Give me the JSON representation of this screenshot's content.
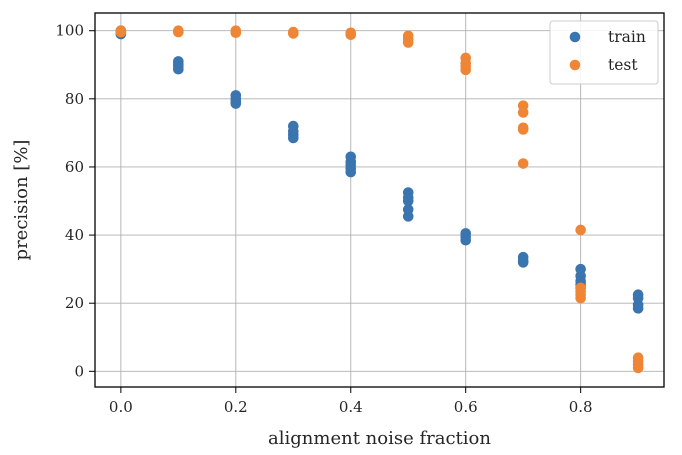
{
  "chart_data": {
    "type": "scatter",
    "xlabel": "alignment noise fraction",
    "ylabel": "precision [%]",
    "xlim": [
      -0.045,
      0.945
    ],
    "ylim": [
      -4.6,
      105.2
    ],
    "x_ticks": [
      0.0,
      0.2,
      0.4,
      0.6,
      0.8
    ],
    "x_tick_labels": [
      "0.0",
      "0.2",
      "0.4",
      "0.6",
      "0.8"
    ],
    "y_ticks": [
      0,
      20,
      40,
      60,
      80,
      100
    ],
    "y_tick_labels": [
      "0",
      "20",
      "40",
      "60",
      "80",
      "100"
    ],
    "grid": true,
    "legend_placement": "top-right",
    "series": [
      {
        "name": "train",
        "color": "#3b75af",
        "points": [
          [
            0.0,
            100
          ],
          [
            0.0,
            99.5
          ],
          [
            0.0,
            99
          ],
          [
            0.1,
            91
          ],
          [
            0.1,
            90.2
          ],
          [
            0.1,
            89.5
          ],
          [
            0.1,
            88.7
          ],
          [
            0.2,
            81
          ],
          [
            0.2,
            80
          ],
          [
            0.2,
            79.2
          ],
          [
            0.2,
            78.6
          ],
          [
            0.3,
            72
          ],
          [
            0.3,
            70.5
          ],
          [
            0.3,
            69.5
          ],
          [
            0.3,
            68.5
          ],
          [
            0.4,
            63
          ],
          [
            0.4,
            61.5
          ],
          [
            0.4,
            60.5
          ],
          [
            0.4,
            59.5
          ],
          [
            0.4,
            58.5
          ],
          [
            0.5,
            52.5
          ],
          [
            0.5,
            51
          ],
          [
            0.5,
            50
          ],
          [
            0.5,
            47.5
          ],
          [
            0.5,
            45.5
          ],
          [
            0.6,
            40.5
          ],
          [
            0.6,
            39.5
          ],
          [
            0.6,
            38.5
          ],
          [
            0.7,
            33.5
          ],
          [
            0.7,
            32.5
          ],
          [
            0.7,
            32
          ],
          [
            0.8,
            30
          ],
          [
            0.8,
            28
          ],
          [
            0.8,
            26.5
          ],
          [
            0.8,
            25.5
          ],
          [
            0.8,
            24.5
          ],
          [
            0.9,
            22.5
          ],
          [
            0.9,
            21.5
          ],
          [
            0.9,
            19.5
          ],
          [
            0.9,
            18.5
          ]
        ]
      },
      {
        "name": "test",
        "color": "#ef8636",
        "points": [
          [
            0.0,
            100
          ],
          [
            0.0,
            99.6
          ],
          [
            0.1,
            100
          ],
          [
            0.1,
            99.6
          ],
          [
            0.2,
            100
          ],
          [
            0.2,
            99.4
          ],
          [
            0.3,
            99.6
          ],
          [
            0.3,
            99.2
          ],
          [
            0.4,
            99.4
          ],
          [
            0.4,
            98.8
          ],
          [
            0.5,
            98.5
          ],
          [
            0.5,
            97.5
          ],
          [
            0.5,
            96.5
          ],
          [
            0.6,
            92
          ],
          [
            0.6,
            90.5
          ],
          [
            0.6,
            89.5
          ],
          [
            0.6,
            88.5
          ],
          [
            0.7,
            78
          ],
          [
            0.7,
            76
          ],
          [
            0.7,
            71.5
          ],
          [
            0.7,
            71
          ],
          [
            0.7,
            61
          ],
          [
            0.8,
            41.5
          ],
          [
            0.8,
            24.5
          ],
          [
            0.8,
            23.5
          ],
          [
            0.8,
            22.5
          ],
          [
            0.8,
            21.5
          ],
          [
            0.9,
            4
          ],
          [
            0.9,
            3
          ],
          [
            0.9,
            2
          ],
          [
            0.9,
            1
          ]
        ]
      }
    ]
  }
}
